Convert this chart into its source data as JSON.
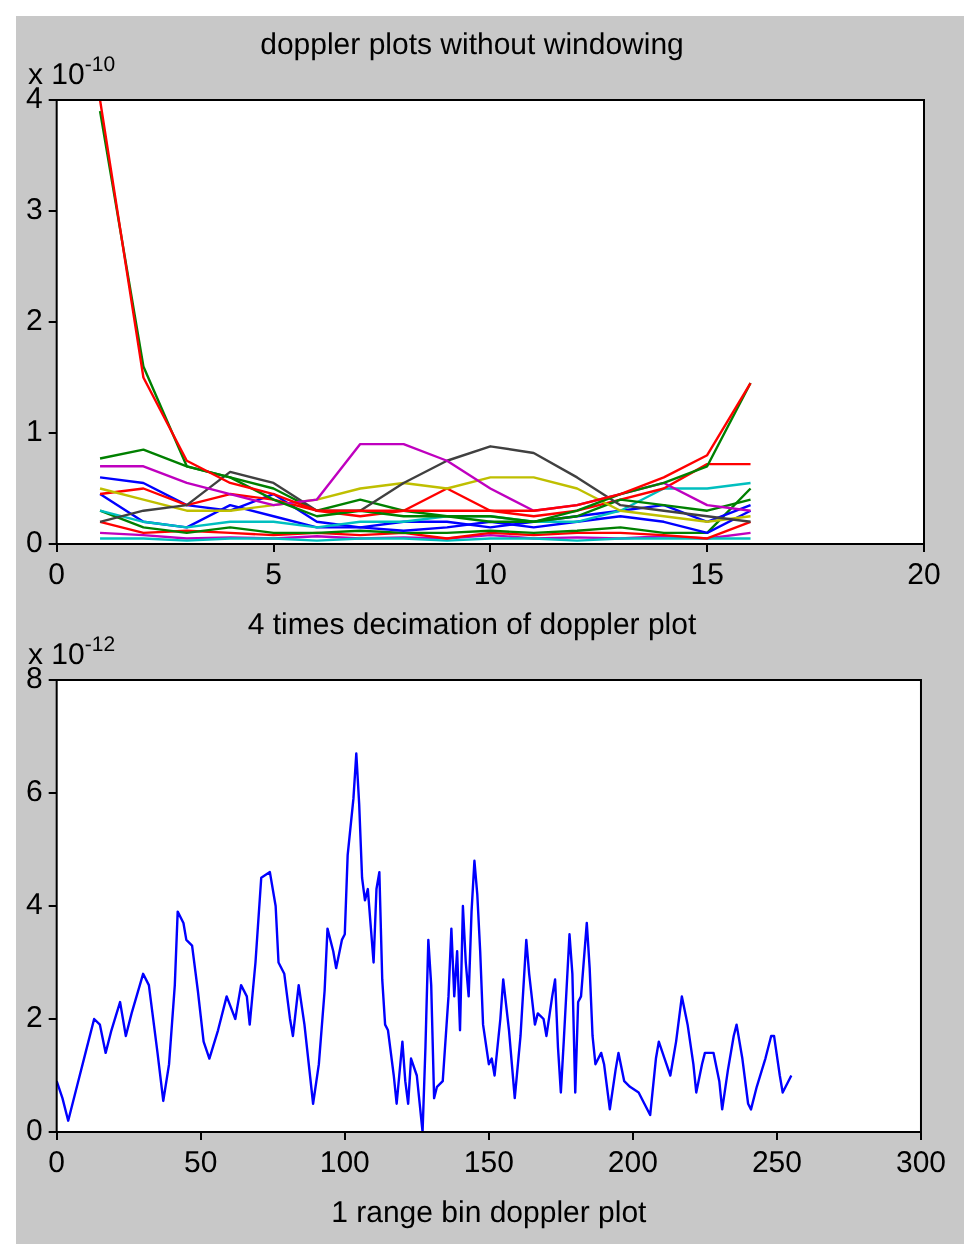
{
  "chart_data": [
    {
      "type": "line",
      "title": "doppler plots without windowing",
      "annotations": [
        "x 10$^{-10}$"
      ],
      "x": [
        1,
        2,
        3,
        4,
        5,
        6,
        7,
        8,
        9,
        10,
        11,
        12,
        13,
        14,
        15,
        16
      ],
      "xlim": [
        0,
        20
      ],
      "xticks": [
        0,
        5,
        10,
        15,
        20
      ],
      "ylim": [
        0,
        4
      ],
      "yticks": [
        0,
        1,
        2,
        3,
        4
      ],
      "series": [
        {
          "color": "#ff0000",
          "values": [
            4.0,
            1.5,
            0.75,
            0.55,
            0.45,
            0.3,
            0.3,
            0.3,
            0.3,
            0.3,
            0.3,
            0.35,
            0.45,
            0.6,
            0.8,
            1.45
          ]
        },
        {
          "color": "#008000",
          "values": [
            3.9,
            1.6,
            0.7,
            0.6,
            0.4,
            0.25,
            0.3,
            0.25,
            0.25,
            0.25,
            0.2,
            0.3,
            0.45,
            0.55,
            0.7,
            1.45
          ]
        },
        {
          "color": "#bf00bf",
          "values": [
            0.7,
            0.7,
            0.55,
            0.45,
            0.35,
            0.4,
            0.9,
            0.9,
            0.75,
            0.5,
            0.3,
            0.35,
            0.45,
            0.55,
            0.35,
            0.3
          ]
        },
        {
          "color": "#404040",
          "values": [
            0.2,
            0.3,
            0.35,
            0.65,
            0.55,
            0.3,
            0.3,
            0.55,
            0.75,
            0.88,
            0.82,
            0.6,
            0.35,
            0.3,
            0.25,
            0.2
          ]
        },
        {
          "color": "#bfbf00",
          "values": [
            0.5,
            0.4,
            0.3,
            0.3,
            0.35,
            0.4,
            0.5,
            0.55,
            0.5,
            0.6,
            0.6,
            0.5,
            0.3,
            0.25,
            0.2,
            0.25
          ]
        },
        {
          "color": "#008000",
          "values": [
            0.77,
            0.85,
            0.7,
            0.6,
            0.5,
            0.3,
            0.4,
            0.3,
            0.25,
            0.2,
            0.2,
            0.25,
            0.4,
            0.35,
            0.3,
            0.4
          ]
        },
        {
          "color": "#ff0000",
          "values": [
            0.45,
            0.5,
            0.35,
            0.45,
            0.4,
            0.3,
            0.25,
            0.3,
            0.5,
            0.3,
            0.25,
            0.3,
            0.4,
            0.5,
            0.72,
            0.72
          ]
        },
        {
          "color": "#00bfbf",
          "values": [
            0.3,
            0.2,
            0.15,
            0.2,
            0.2,
            0.15,
            0.2,
            0.2,
            0.25,
            0.25,
            0.2,
            0.2,
            0.3,
            0.5,
            0.5,
            0.55
          ]
        },
        {
          "color": "#0000ff",
          "values": [
            0.6,
            0.55,
            0.35,
            0.3,
            0.45,
            0.2,
            0.15,
            0.2,
            0.2,
            0.15,
            0.2,
            0.25,
            0.3,
            0.35,
            0.2,
            0.35
          ]
        },
        {
          "color": "#0000ff",
          "values": [
            0.45,
            0.2,
            0.15,
            0.35,
            0.25,
            0.15,
            0.15,
            0.12,
            0.15,
            0.2,
            0.15,
            0.2,
            0.25,
            0.2,
            0.1,
            0.3
          ]
        },
        {
          "color": "#008000",
          "values": [
            0.3,
            0.15,
            0.1,
            0.15,
            0.1,
            0.1,
            0.12,
            0.1,
            0.1,
            0.12,
            0.1,
            0.12,
            0.15,
            0.1,
            0.1,
            0.5
          ]
        },
        {
          "color": "#ff0000",
          "values": [
            0.2,
            0.1,
            0.12,
            0.1,
            0.08,
            0.1,
            0.08,
            0.1,
            0.05,
            0.1,
            0.08,
            0.1,
            0.1,
            0.08,
            0.05,
            0.2
          ]
        },
        {
          "color": "#00bfbf",
          "values": [
            0.05,
            0.05,
            0.03,
            0.05,
            0.05,
            0.03,
            0.05,
            0.05,
            0.03,
            0.05,
            0.05,
            0.03,
            0.05,
            0.05,
            0.05,
            0.05
          ]
        },
        {
          "color": "#bf00bf",
          "values": [
            0.1,
            0.08,
            0.05,
            0.06,
            0.05,
            0.07,
            0.05,
            0.06,
            0.05,
            0.08,
            0.05,
            0.06,
            0.05,
            0.07,
            0.05,
            0.1
          ]
        }
      ]
    },
    {
      "type": "line",
      "title": "4 times decimation of doppler plot",
      "xlabel": "1 range bin doppler plot",
      "annotations": [
        "x 10$^{-12}$"
      ],
      "xlim": [
        0,
        300
      ],
      "xticks": [
        0,
        50,
        100,
        150,
        200,
        250,
        300
      ],
      "ylim": [
        0,
        8
      ],
      "yticks": [
        0,
        2,
        4,
        6,
        8
      ],
      "color": "#0000ff",
      "x": [
        0,
        2,
        4,
        7,
        10,
        13,
        15,
        17,
        19,
        22,
        24,
        26,
        30,
        32,
        35,
        37,
        39,
        41,
        42,
        44,
        45,
        47,
        49,
        51,
        53,
        56,
        59,
        62,
        64,
        66,
        67,
        69,
        71,
        74,
        76,
        77,
        79,
        81,
        82,
        84,
        86,
        89,
        91,
        93,
        94,
        96,
        97,
        99,
        100,
        101,
        103,
        104,
        105,
        106,
        107,
        108,
        110,
        111,
        112,
        113,
        114,
        115,
        117,
        118,
        120,
        121,
        122,
        123,
        125,
        126,
        127,
        128,
        129,
        130,
        131,
        132,
        134,
        136,
        137,
        138,
        139,
        140,
        141,
        142,
        143,
        144,
        145,
        146,
        147,
        148,
        150,
        151,
        152,
        154,
        155,
        157,
        159,
        161,
        163,
        164,
        166,
        167,
        169,
        170,
        172,
        173,
        174,
        175,
        176,
        178,
        179,
        180,
        181,
        182,
        184,
        185,
        186,
        187,
        189,
        190,
        192,
        194,
        195,
        197,
        199,
        202,
        204,
        206,
        208,
        209,
        211,
        213,
        215,
        217,
        219,
        221,
        222,
        224,
        225,
        228,
        230,
        231,
        233,
        235,
        236,
        238,
        240,
        241,
        243,
        246,
        248,
        249,
        251,
        252,
        255
      ],
      "values": [
        0.9,
        0.6,
        0.2,
        0.8,
        1.4,
        2.0,
        1.9,
        1.4,
        1.8,
        2.3,
        1.7,
        2.1,
        2.8,
        2.6,
        1.4,
        0.55,
        1.2,
        2.6,
        3.9,
        3.7,
        3.4,
        3.3,
        2.5,
        1.6,
        1.3,
        1.8,
        2.4,
        2.0,
        2.6,
        2.4,
        1.9,
        3.0,
        4.5,
        4.6,
        4.0,
        3.0,
        2.8,
        2.0,
        1.7,
        2.6,
        1.9,
        0.5,
        1.2,
        2.5,
        3.6,
        3.2,
        2.9,
        3.4,
        3.5,
        4.9,
        5.9,
        6.7,
        5.8,
        4.5,
        4.1,
        4.3,
        3.0,
        4.3,
        4.6,
        2.7,
        1.9,
        1.8,
        1.0,
        0.5,
        1.6,
        0.9,
        0.5,
        1.3,
        1.0,
        0.5,
        0,
        1.5,
        3.4,
        2.6,
        0.6,
        0.8,
        0.9,
        2.4,
        3.6,
        2.4,
        3.2,
        1.8,
        4.0,
        3.0,
        2.4,
        3.9,
        4.8,
        4.2,
        3.2,
        1.9,
        1.2,
        1.3,
        1.0,
        2.0,
        2.7,
        1.8,
        0.6,
        1.7,
        3.4,
        2.8,
        1.9,
        2.1,
        2.0,
        1.7,
        2.4,
        2.7,
        1.5,
        0.7,
        1.6,
        3.5,
        2.8,
        0.7,
        2.3,
        2.4,
        3.7,
        2.9,
        1.7,
        1.2,
        1.4,
        1.2,
        0.4,
        1.1,
        1.4,
        0.9,
        0.8,
        0.7,
        0.5,
        0.3,
        1.3,
        1.6,
        1.3,
        1.0,
        1.6,
        2.4,
        1.9,
        1.2,
        0.7,
        1.2,
        1.4,
        1.4,
        0.9,
        0.4,
        1.1,
        1.7,
        1.9,
        1.3,
        0.5,
        0.4,
        0.8,
        1.3,
        1.7,
        1.7,
        1.0,
        0.7,
        1.0
      ]
    }
  ]
}
